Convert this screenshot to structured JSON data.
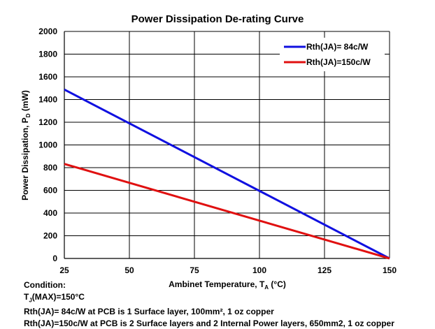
{
  "chart_data": {
    "type": "line",
    "title": "Power Dissipation De-rating Curve",
    "xlabel": {
      "prefix": "Ambinet Temperature, T",
      "sub": "A",
      "suffix": " (°C)"
    },
    "ylabel": {
      "prefix": "Power Dissipation, P",
      "sub": "D",
      "suffix": " (mW)"
    },
    "xlim": [
      25,
      150
    ],
    "ylim": [
      0,
      2000
    ],
    "x_ticks": [
      "25",
      "50",
      "75",
      "100",
      "125",
      "150"
    ],
    "y_ticks": [
      "0",
      "200",
      "400",
      "600",
      "800",
      "1000",
      "1200",
      "1400",
      "1600",
      "1800",
      "2000"
    ],
    "grid": true,
    "legend_position": "top-right",
    "series": [
      {
        "name": "Rth(JA)=  84c/W",
        "color": "#1010e0",
        "x": [
          25,
          150
        ],
        "y": [
          1488,
          0
        ]
      },
      {
        "name": "Rth(JA)=150c/W",
        "color": "#e01010",
        "x": [
          25,
          150
        ],
        "y": [
          833,
          0
        ]
      }
    ]
  },
  "notes": {
    "heading": "Condition:",
    "tj": {
      "prefix": "T",
      "sub": "J",
      "suffix": "(MAX)=150°C"
    },
    "line1": "Rth(JA)=   84c/W at PCB is 1 Surface layer, 100mm², 1 oz copper",
    "line2": "Rth(JA)=150c/W  at PCB is 2 Surface layers and 2 Internal Power layers, 650mm2, 1 oz copper"
  }
}
